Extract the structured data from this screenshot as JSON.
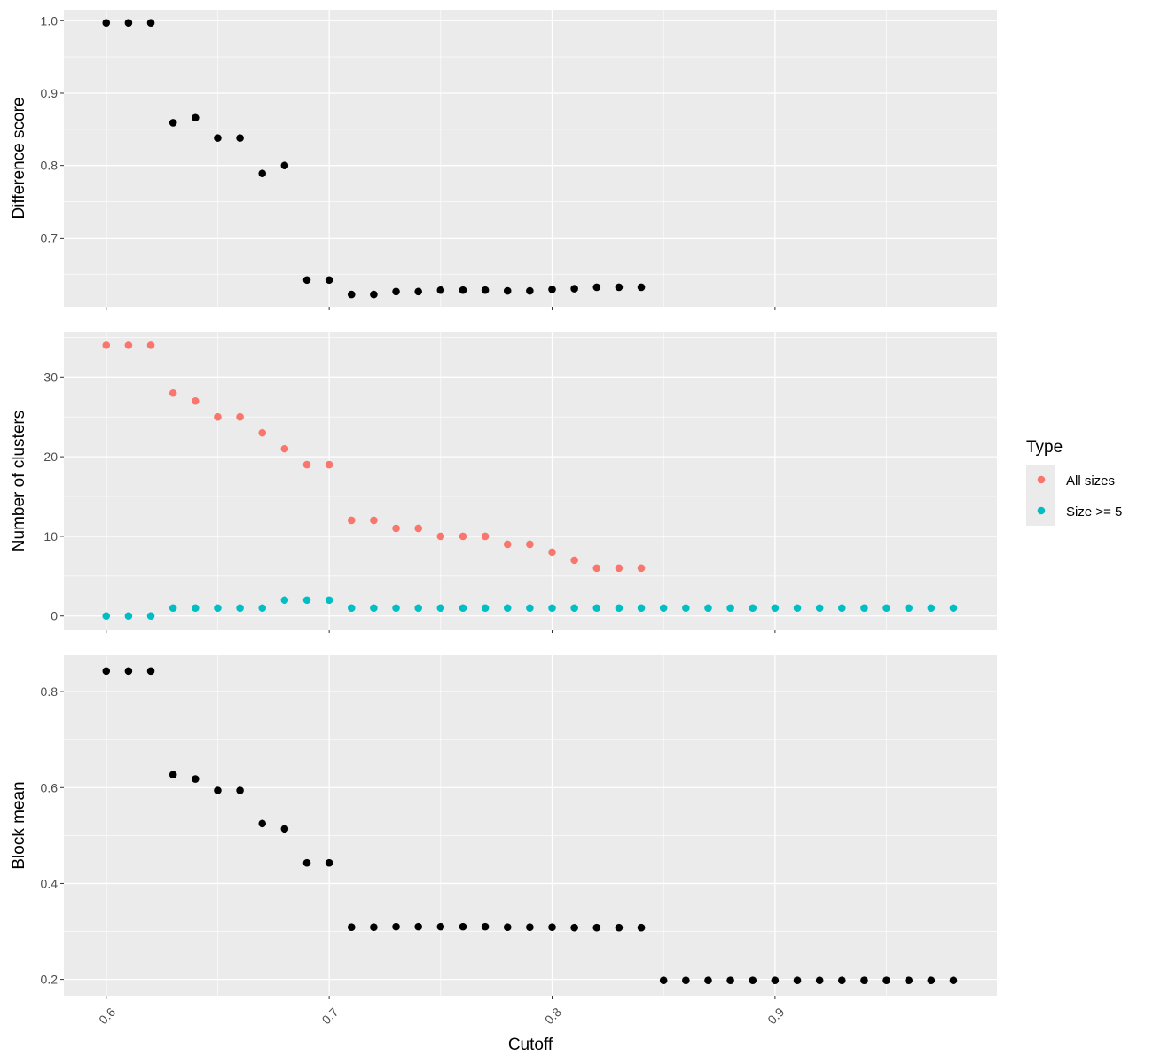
{
  "chart_data": {
    "type": "scatter",
    "xlabel": "Cutoff",
    "x_ticks": [
      0.6,
      0.7,
      0.8,
      0.9
    ],
    "x_tick_labels": [
      "0.6",
      "0.7",
      "0.8",
      "0.9"
    ],
    "xlim": [
      0.581,
      0.9995
    ],
    "background_color": "#ebebeb",
    "grid": true,
    "panels": [
      {
        "ylabel": "Difference score",
        "ylim": [
          0.605,
          1.015
        ],
        "y_ticks": [
          0.7,
          0.8,
          0.9,
          1.0
        ],
        "y_tick_labels": [
          "0.7",
          "0.8",
          "0.9",
          "1.0"
        ],
        "series": [
          {
            "color": "#000000",
            "x": [
              0.6,
              0.61,
              0.62,
              0.63,
              0.64,
              0.65,
              0.66,
              0.67,
              0.68,
              0.69,
              0.7,
              0.71,
              0.72,
              0.73,
              0.74,
              0.75,
              0.76,
              0.77,
              0.78,
              0.79,
              0.8,
              0.81,
              0.82,
              0.83,
              0.84
            ],
            "y": [
              0.997,
              0.997,
              0.997,
              0.859,
              0.866,
              0.838,
              0.838,
              0.789,
              0.8,
              0.642,
              0.642,
              0.622,
              0.622,
              0.626,
              0.626,
              0.628,
              0.628,
              0.628,
              0.627,
              0.627,
              0.629,
              0.63,
              0.632,
              0.632,
              0.632
            ]
          }
        ]
      },
      {
        "ylabel": "Number of clusters",
        "ylim": [
          -1.7,
          35.6
        ],
        "y_ticks": [
          0,
          10,
          20,
          30
        ],
        "y_tick_labels": [
          "0",
          "10",
          "20",
          "30"
        ],
        "series": [
          {
            "name": "All sizes",
            "color": "#f8766d",
            "x": [
              0.6,
              0.61,
              0.62,
              0.63,
              0.64,
              0.65,
              0.66,
              0.67,
              0.68,
              0.69,
              0.7,
              0.71,
              0.72,
              0.73,
              0.74,
              0.75,
              0.76,
              0.77,
              0.78,
              0.79,
              0.8,
              0.81,
              0.82,
              0.83,
              0.84
            ],
            "y": [
              34,
              34,
              34,
              28,
              27,
              25,
              25,
              23,
              21,
              19,
              19,
              12,
              12,
              11,
              11,
              10,
              10,
              10,
              9,
              9,
              8,
              7,
              6,
              6,
              6
            ]
          },
          {
            "name": "Size >= 5",
            "color": "#00bfc4",
            "x": [
              0.6,
              0.61,
              0.62,
              0.63,
              0.64,
              0.65,
              0.66,
              0.67,
              0.68,
              0.69,
              0.7,
              0.71,
              0.72,
              0.73,
              0.74,
              0.75,
              0.76,
              0.77,
              0.78,
              0.79,
              0.8,
              0.81,
              0.82,
              0.83,
              0.84,
              0.85,
              0.86,
              0.87,
              0.88,
              0.89,
              0.9,
              0.91,
              0.92,
              0.93,
              0.94,
              0.95,
              0.96,
              0.97,
              0.98
            ],
            "y": [
              0,
              0,
              0,
              1,
              1,
              1,
              1,
              1,
              2,
              2,
              2,
              1,
              1,
              1,
              1,
              1,
              1,
              1,
              1,
              1,
              1,
              1,
              1,
              1,
              1,
              1,
              1,
              1,
              1,
              1,
              1,
              1,
              1,
              1,
              1,
              1,
              1,
              1,
              1
            ]
          }
        ]
      },
      {
        "ylabel": "Block mean",
        "ylim": [
          0.166,
          0.876
        ],
        "y_ticks": [
          0.2,
          0.4,
          0.6,
          0.8
        ],
        "y_tick_labels": [
          "0.2",
          "0.4",
          "0.6",
          "0.8"
        ],
        "series": [
          {
            "color": "#000000",
            "x": [
              0.6,
              0.61,
              0.62,
              0.63,
              0.64,
              0.65,
              0.66,
              0.67,
              0.68,
              0.69,
              0.7,
              0.71,
              0.72,
              0.73,
              0.74,
              0.75,
              0.76,
              0.77,
              0.78,
              0.79,
              0.8,
              0.81,
              0.82,
              0.83,
              0.84,
              0.85,
              0.86,
              0.87,
              0.88,
              0.89,
              0.9,
              0.91,
              0.92,
              0.93,
              0.94,
              0.95,
              0.96,
              0.97,
              0.98
            ],
            "y": [
              0.843,
              0.843,
              0.843,
              0.627,
              0.618,
              0.594,
              0.594,
              0.525,
              0.514,
              0.443,
              0.443,
              0.309,
              0.309,
              0.31,
              0.31,
              0.31,
              0.31,
              0.31,
              0.309,
              0.309,
              0.309,
              0.308,
              0.308,
              0.308,
              0.308,
              0.198,
              0.198,
              0.198,
              0.198,
              0.198,
              0.198,
              0.198,
              0.198,
              0.198,
              0.198,
              0.198,
              0.198,
              0.198,
              0.198
            ]
          }
        ]
      }
    ],
    "legend": {
      "title": "Type",
      "placement": "right",
      "entries": [
        {
          "label": "All sizes",
          "color": "#f8766d"
        },
        {
          "label": "Size >= 5",
          "color": "#00bfc4"
        }
      ]
    }
  }
}
